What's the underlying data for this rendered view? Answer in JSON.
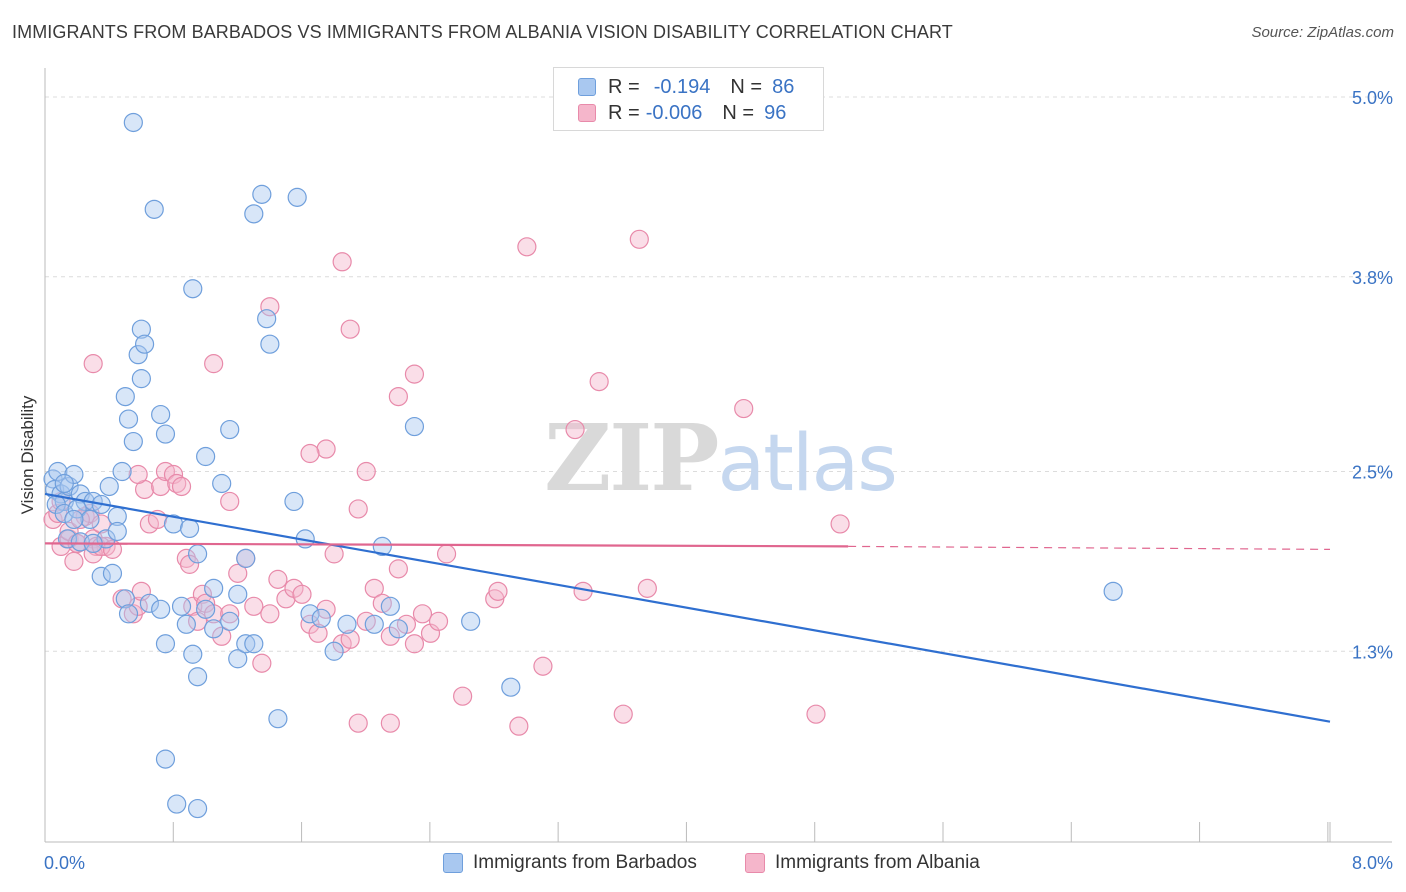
{
  "header": {
    "title": "IMMIGRANTS FROM BARBADOS VS IMMIGRANTS FROM ALBANIA VISION DISABILITY CORRELATION CHART",
    "source": "Source: ZipAtlas.com"
  },
  "legend": {
    "barbados": {
      "r_label": "R =",
      "r_value": "-0.194",
      "n_label": "N =",
      "n_value": "86"
    },
    "albania": {
      "r_label": "R =",
      "r_value": "-0.006",
      "n_label": "N =",
      "n_value": "96"
    }
  },
  "bottom_legend": {
    "barbados": "Immigrants from Barbados",
    "albania": "Immigrants from Albania"
  },
  "colors": {
    "barbados_fill": "#a9c8f0",
    "barbados_stroke": "#6f9fdc",
    "barbados_line": "#2f6fd0",
    "albania_fill": "#f5b6cb",
    "albania_stroke": "#e88aaa",
    "albania_line": "#e0668f",
    "axis_value": "#3a73c4",
    "grid": "#dcdcdc"
  },
  "chart_data": {
    "type": "scatter",
    "title": "IMMIGRANTS FROM BARBADOS VS IMMIGRANTS FROM ALBANIA VISION DISABILITY CORRELATION CHART",
    "xlabel": "",
    "ylabel": "Vision Disability",
    "xlim": [
      0,
      8
    ],
    "ylim": [
      0,
      5.2
    ],
    "x_tick_labels": [
      "0.0%",
      "8.0%"
    ],
    "y_ticks": [
      1.3,
      2.5,
      3.8,
      5.0
    ],
    "y_tick_labels": [
      "1.3%",
      "2.5%",
      "3.8%",
      "5.0%"
    ],
    "grid": true,
    "watermark": "ZIPatlas",
    "series": [
      {
        "name": "Immigrants from Barbados",
        "trend": {
          "x": [
            0,
            8
          ],
          "y": [
            2.35,
            0.83
          ]
        },
        "points": [
          [
            0.05,
            2.45
          ],
          [
            0.08,
            2.5
          ],
          [
            0.06,
            2.38
          ],
          [
            0.1,
            2.35
          ],
          [
            0.12,
            2.3
          ],
          [
            0.15,
            2.4
          ],
          [
            0.18,
            2.48
          ],
          [
            0.22,
            2.35
          ],
          [
            0.25,
            2.3
          ],
          [
            0.3,
            2.3
          ],
          [
            0.07,
            2.28
          ],
          [
            0.12,
            2.22
          ],
          [
            0.2,
            2.25
          ],
          [
            0.28,
            2.18
          ],
          [
            0.35,
            2.28
          ],
          [
            0.14,
            2.05
          ],
          [
            0.22,
            2.03
          ],
          [
            0.38,
            2.05
          ],
          [
            0.4,
            2.4
          ],
          [
            0.48,
            2.5
          ],
          [
            0.3,
            2.02
          ],
          [
            0.45,
            2.2
          ],
          [
            0.52,
            2.85
          ],
          [
            0.55,
            2.7
          ],
          [
            0.5,
            3.0
          ],
          [
            0.6,
            3.12
          ],
          [
            0.58,
            3.28
          ],
          [
            0.6,
            3.45
          ],
          [
            0.62,
            3.35
          ],
          [
            0.72,
            2.88
          ],
          [
            0.75,
            2.75
          ],
          [
            0.55,
            4.83
          ],
          [
            0.68,
            4.25
          ],
          [
            0.8,
            2.15
          ],
          [
            0.9,
            2.12
          ],
          [
            0.95,
            1.95
          ],
          [
            1.0,
            2.6
          ],
          [
            1.05,
            1.72
          ],
          [
            1.1,
            2.42
          ],
          [
            1.15,
            2.78
          ],
          [
            1.2,
            1.68
          ],
          [
            1.25,
            1.92
          ],
          [
            1.3,
            4.22
          ],
          [
            1.35,
            4.35
          ],
          [
            1.38,
            3.52
          ],
          [
            1.4,
            3.35
          ],
          [
            1.55,
            2.3
          ],
          [
            1.57,
            4.33
          ],
          [
            1.62,
            2.05
          ],
          [
            1.65,
            1.55
          ],
          [
            1.72,
            1.52
          ],
          [
            1.8,
            1.3
          ],
          [
            1.88,
            1.48
          ],
          [
            2.05,
            1.48
          ],
          [
            2.15,
            1.6
          ],
          [
            2.1,
            2.0
          ],
          [
            0.35,
            1.8
          ],
          [
            0.42,
            1.82
          ],
          [
            0.5,
            1.65
          ],
          [
            0.52,
            1.55
          ],
          [
            0.65,
            1.62
          ],
          [
            0.72,
            1.58
          ],
          [
            0.75,
            1.35
          ],
          [
            0.85,
            1.6
          ],
          [
            0.88,
            1.48
          ],
          [
            0.92,
            1.28
          ],
          [
            0.95,
            1.13
          ],
          [
            1.0,
            1.58
          ],
          [
            1.05,
            1.45
          ],
          [
            1.15,
            1.5
          ],
          [
            1.2,
            1.25
          ],
          [
            1.25,
            1.35
          ],
          [
            1.3,
            1.35
          ],
          [
            1.45,
            0.85
          ],
          [
            0.92,
            3.72
          ],
          [
            0.75,
            0.58
          ],
          [
            0.82,
            0.28
          ],
          [
            0.95,
            0.25
          ],
          [
            2.2,
            1.45
          ],
          [
            2.3,
            2.8
          ],
          [
            2.65,
            1.5
          ],
          [
            2.9,
            1.06
          ],
          [
            6.65,
            1.7
          ],
          [
            0.45,
            2.1
          ],
          [
            0.12,
            2.42
          ],
          [
            0.18,
            2.18
          ]
        ]
      },
      {
        "name": "Immigrants from Albania",
        "trend": {
          "x": [
            0,
            5.0
          ],
          "y": [
            2.02,
            2.0
          ]
        },
        "trend_dashed": {
          "x": [
            5.0,
            8.0
          ],
          "y": [
            2.0,
            1.98
          ]
        },
        "points": [
          [
            0.05,
            2.18
          ],
          [
            0.08,
            2.22
          ],
          [
            0.1,
            2.0
          ],
          [
            0.15,
            2.05
          ],
          [
            0.2,
            2.02
          ],
          [
            0.25,
            2.2
          ],
          [
            0.28,
            2.22
          ],
          [
            0.3,
            2.05
          ],
          [
            0.32,
            2.0
          ],
          [
            0.35,
            2.15
          ],
          [
            0.38,
            2.0
          ],
          [
            0.1,
            2.3
          ],
          [
            0.15,
            2.1
          ],
          [
            0.18,
            1.9
          ],
          [
            0.2,
            2.02
          ],
          [
            0.22,
            2.18
          ],
          [
            0.3,
            1.95
          ],
          [
            0.35,
            2.0
          ],
          [
            0.42,
            1.98
          ],
          [
            0.48,
            1.65
          ],
          [
            0.55,
            1.55
          ],
          [
            0.58,
            1.6
          ],
          [
            0.6,
            1.7
          ],
          [
            0.62,
            2.38
          ],
          [
            0.65,
            2.15
          ],
          [
            0.7,
            2.18
          ],
          [
            0.72,
            2.4
          ],
          [
            0.75,
            2.5
          ],
          [
            0.8,
            2.48
          ],
          [
            0.82,
            2.42
          ],
          [
            0.85,
            2.4
          ],
          [
            0.88,
            1.92
          ],
          [
            0.9,
            1.88
          ],
          [
            0.92,
            1.6
          ],
          [
            0.95,
            1.5
          ],
          [
            0.98,
            1.68
          ],
          [
            1.0,
            1.62
          ],
          [
            1.05,
            1.55
          ],
          [
            1.1,
            1.4
          ],
          [
            1.15,
            1.55
          ],
          [
            1.2,
            1.82
          ],
          [
            1.25,
            1.92
          ],
          [
            1.3,
            1.6
          ],
          [
            1.35,
            1.22
          ],
          [
            1.4,
            1.55
          ],
          [
            1.45,
            1.78
          ],
          [
            1.5,
            1.65
          ],
          [
            1.55,
            1.72
          ],
          [
            1.6,
            1.68
          ],
          [
            1.65,
            1.48
          ],
          [
            1.7,
            1.42
          ],
          [
            1.75,
            1.58
          ],
          [
            1.8,
            1.95
          ],
          [
            1.85,
            1.35
          ],
          [
            1.9,
            1.38
          ],
          [
            1.95,
            2.25
          ],
          [
            2.0,
            1.5
          ],
          [
            2.05,
            1.72
          ],
          [
            2.1,
            1.62
          ],
          [
            2.15,
            1.4
          ],
          [
            2.2,
            1.85
          ],
          [
            2.25,
            1.48
          ],
          [
            2.3,
            1.35
          ],
          [
            2.35,
            1.55
          ],
          [
            2.4,
            1.42
          ],
          [
            2.45,
            1.5
          ],
          [
            2.5,
            1.95
          ],
          [
            2.3,
            3.15
          ],
          [
            2.2,
            3.0
          ],
          [
            1.75,
            2.65
          ],
          [
            1.65,
            2.62
          ],
          [
            1.4,
            3.6
          ],
          [
            1.05,
            3.22
          ],
          [
            0.3,
            3.22
          ],
          [
            1.9,
            3.45
          ],
          [
            1.85,
            3.9
          ],
          [
            2.15,
            0.82
          ],
          [
            1.95,
            0.82
          ],
          [
            2.6,
            1.0
          ],
          [
            2.8,
            1.65
          ],
          [
            2.82,
            1.7
          ],
          [
            3.0,
            4.0
          ],
          [
            3.3,
            2.78
          ],
          [
            3.35,
            1.7
          ],
          [
            3.45,
            3.1
          ],
          [
            3.7,
            4.05
          ],
          [
            3.75,
            1.72
          ],
          [
            4.35,
            2.92
          ],
          [
            4.95,
            2.15
          ],
          [
            3.1,
            1.2
          ],
          [
            3.6,
            0.88
          ],
          [
            4.8,
            0.88
          ],
          [
            2.95,
            0.8
          ],
          [
            1.15,
            2.3
          ],
          [
            0.58,
            2.48
          ],
          [
            2.0,
            2.5
          ]
        ]
      }
    ]
  }
}
